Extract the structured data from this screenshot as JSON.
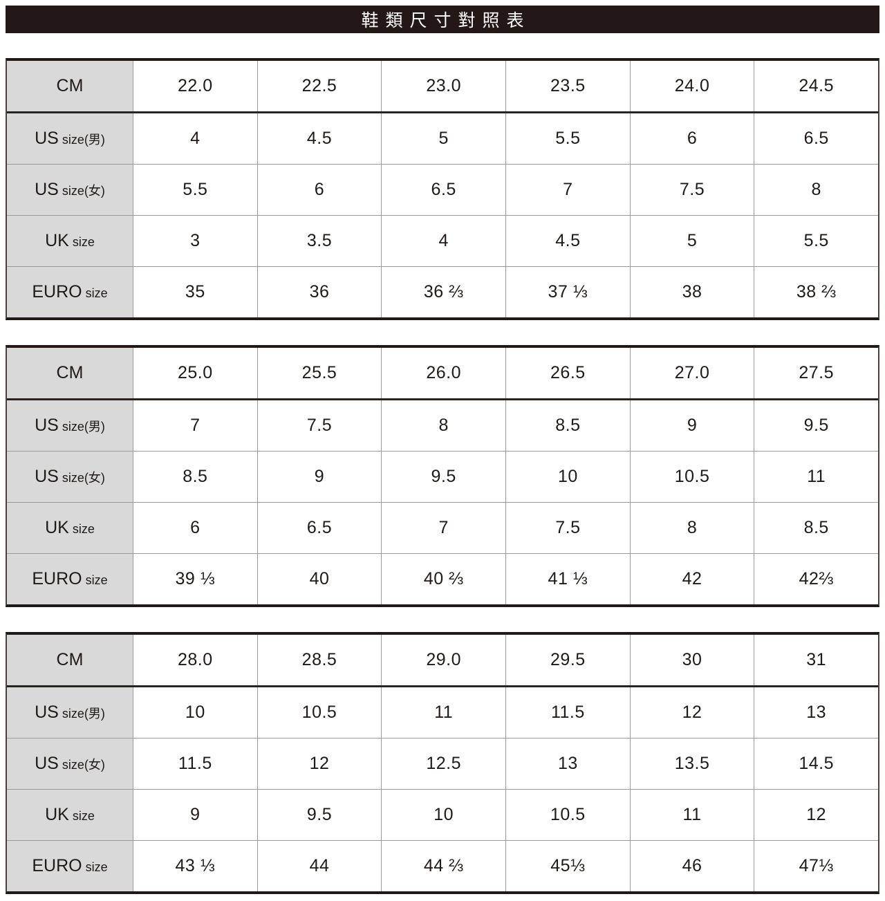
{
  "title": "鞋類尺寸對照表",
  "colors": {
    "title_bg": "#231815",
    "title_text": "#ffffff",
    "label_bg": "#d9d9d9",
    "border_dark": "#231815",
    "border_light": "#9b9b9b",
    "text": "#1f1a17"
  },
  "tables": [
    {
      "rows": [
        {
          "label": "CM",
          "label_sub": "",
          "values": [
            "22.0",
            "22.5",
            "23.0",
            "23.5",
            "24.0",
            "24.5"
          ]
        },
        {
          "label": "US",
          "label_sub": "size(男)",
          "values": [
            "4",
            "4.5",
            "5",
            "5.5",
            "6",
            "6.5"
          ]
        },
        {
          "label": "US",
          "label_sub": "size(女)",
          "values": [
            "5.5",
            "6",
            "6.5",
            "7",
            "7.5",
            "8"
          ]
        },
        {
          "label": "UK",
          "label_sub": "size",
          "values": [
            "3",
            "3.5",
            "4",
            "4.5",
            "5",
            "5.5"
          ]
        },
        {
          "label": "EURO",
          "label_sub": "size",
          "values": [
            "35",
            "36",
            "36 ⅔",
            "37 ⅓",
            "38",
            "38 ⅔"
          ]
        }
      ]
    },
    {
      "rows": [
        {
          "label": "CM",
          "label_sub": "",
          "values": [
            "25.0",
            "25.5",
            "26.0",
            "26.5",
            "27.0",
            "27.5"
          ]
        },
        {
          "label": "US",
          "label_sub": "size(男)",
          "values": [
            "7",
            "7.5",
            "8",
            "8.5",
            "9",
            "9.5"
          ]
        },
        {
          "label": "US",
          "label_sub": "size(女)",
          "values": [
            "8.5",
            "9",
            "9.5",
            "10",
            "10.5",
            "11"
          ]
        },
        {
          "label": "UK",
          "label_sub": "size",
          "values": [
            "6",
            "6.5",
            "7",
            "7.5",
            "8",
            "8.5"
          ]
        },
        {
          "label": "EURO",
          "label_sub": "size",
          "values": [
            "39 ⅓",
            "40",
            "40 ⅔",
            "41 ⅓",
            "42",
            "42⅔"
          ]
        }
      ]
    },
    {
      "rows": [
        {
          "label": "CM",
          "label_sub": "",
          "values": [
            "28.0",
            "28.5",
            "29.0",
            "29.5",
            "30",
            "31"
          ]
        },
        {
          "label": "US",
          "label_sub": "size(男)",
          "values": [
            "10",
            "10.5",
            "11",
            "11.5",
            "12",
            "13"
          ]
        },
        {
          "label": "US",
          "label_sub": "size(女)",
          "values": [
            "11.5",
            "12",
            "12.5",
            "13",
            "13.5",
            "14.5"
          ]
        },
        {
          "label": "UK",
          "label_sub": "size",
          "values": [
            "9",
            "9.5",
            "10",
            "10.5",
            "11",
            "12"
          ]
        },
        {
          "label": "EURO",
          "label_sub": "size",
          "values": [
            "43 ⅓",
            "44",
            "44 ⅔",
            "45⅓",
            "46",
            "47⅓"
          ]
        }
      ]
    }
  ]
}
